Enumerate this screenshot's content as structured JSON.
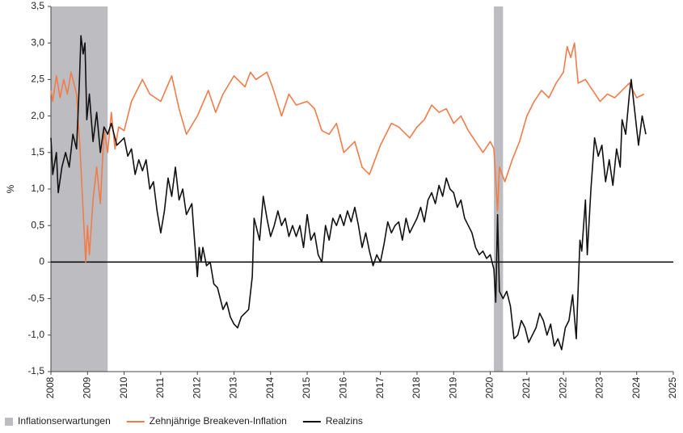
{
  "chart_data": {
    "type": "line",
    "ylabel": "%",
    "xlim": [
      2008,
      2025
    ],
    "xticks": [
      2008,
      2009,
      2010,
      2011,
      2012,
      2013,
      2014,
      2015,
      2016,
      2017,
      2018,
      2019,
      2020,
      2021,
      2022,
      2023,
      2024,
      2025
    ],
    "ylim": [
      -1.5,
      3.5
    ],
    "yticks": [
      {
        "value": -1.5,
        "label": "-1,5"
      },
      {
        "value": -1.0,
        "label": "-1,0"
      },
      {
        "value": -0.5,
        "label": "-0,5"
      },
      0,
      {
        "value": 0.5,
        "label": "0,5"
      },
      {
        "value": 1.0,
        "label": "1,0"
      },
      {
        "value": 1.5,
        "label": "1,5"
      },
      {
        "value": 2.0,
        "label": "2,0"
      },
      {
        "value": 2.5,
        "label": "2,5"
      },
      {
        "value": 3.0,
        "label": "3,0"
      },
      {
        "value": 3.5,
        "label": "3,5"
      }
    ],
    "shaded_regions": {
      "name": "Inflationserwartungen",
      "color": "#bdbdc1",
      "ranges": [
        [
          2008.0,
          2009.55
        ],
        [
          2020.1,
          2020.35
        ]
      ]
    },
    "series": [
      {
        "name": "Zehnjährige Breakeven-Inflation",
        "color": "#f07c4a",
        "x": [
          2008.0,
          2008.05,
          2008.15,
          2008.25,
          2008.35,
          2008.45,
          2008.55,
          2008.7,
          2008.8,
          2008.9,
          2008.95,
          2009.0,
          2009.05,
          2009.15,
          2009.25,
          2009.35,
          2009.45,
          2009.55,
          2009.65,
          2009.75,
          2009.85,
          2010.0,
          2010.2,
          2010.5,
          2010.7,
          2011.0,
          2011.3,
          2011.5,
          2011.7,
          2012.0,
          2012.3,
          2012.5,
          2012.7,
          2013.0,
          2013.3,
          2013.45,
          2013.6,
          2013.9,
          2014.05,
          2014.3,
          2014.5,
          2014.7,
          2015.0,
          2015.2,
          2015.4,
          2015.6,
          2015.8,
          2016.0,
          2016.3,
          2016.5,
          2016.7,
          2017.0,
          2017.3,
          2017.5,
          2017.8,
          2018.0,
          2018.2,
          2018.4,
          2018.6,
          2018.8,
          2019.0,
          2019.2,
          2019.4,
          2019.6,
          2019.8,
          2020.0,
          2020.1,
          2020.2,
          2020.25,
          2020.4,
          2020.6,
          2020.8,
          2021.0,
          2021.2,
          2021.4,
          2021.6,
          2021.8,
          2022.0,
          2022.1,
          2022.2,
          2022.3,
          2022.4,
          2022.6,
          2022.8,
          2023.0,
          2023.2,
          2023.4,
          2023.6,
          2023.8,
          2024.0,
          2024.2
        ],
        "values": [
          2.35,
          2.2,
          2.55,
          2.25,
          2.5,
          2.3,
          2.6,
          2.3,
          1.5,
          0.5,
          0.0,
          0.5,
          0.1,
          0.85,
          1.3,
          0.8,
          1.8,
          1.5,
          2.05,
          1.55,
          1.85,
          1.8,
          2.2,
          2.5,
          2.3,
          2.2,
          2.55,
          2.1,
          1.75,
          2.0,
          2.35,
          2.05,
          2.3,
          2.55,
          2.4,
          2.6,
          2.5,
          2.6,
          2.4,
          2.0,
          2.3,
          2.15,
          2.2,
          2.1,
          1.8,
          1.75,
          1.9,
          1.5,
          1.65,
          1.3,
          1.2,
          1.6,
          1.9,
          1.85,
          1.7,
          1.85,
          1.95,
          2.15,
          2.05,
          2.1,
          1.9,
          2.0,
          1.8,
          1.65,
          1.5,
          1.65,
          1.55,
          0.7,
          1.3,
          1.1,
          1.4,
          1.65,
          2.0,
          2.2,
          2.35,
          2.25,
          2.45,
          2.6,
          2.95,
          2.8,
          3.0,
          2.45,
          2.5,
          2.35,
          2.2,
          2.3,
          2.25,
          2.35,
          2.45,
          2.25,
          2.3
        ]
      },
      {
        "name": "Realzins",
        "color": "#111111",
        "x": [
          2008.0,
          2008.05,
          2008.15,
          2008.2,
          2008.3,
          2008.4,
          2008.5,
          2008.6,
          2008.7,
          2008.78,
          2008.82,
          2008.88,
          2008.93,
          2008.98,
          2009.05,
          2009.15,
          2009.25,
          2009.35,
          2009.45,
          2009.55,
          2009.65,
          2009.8,
          2010.0,
          2010.1,
          2010.2,
          2010.3,
          2010.4,
          2010.5,
          2010.6,
          2010.7,
          2010.8,
          2010.9,
          2011.0,
          2011.1,
          2011.2,
          2011.3,
          2011.4,
          2011.5,
          2011.6,
          2011.7,
          2011.85,
          2011.9,
          2012.0,
          2012.05,
          2012.1,
          2012.15,
          2012.25,
          2012.35,
          2012.45,
          2012.55,
          2012.65,
          2012.7,
          2012.8,
          2012.9,
          2013.0,
          2013.1,
          2013.2,
          2013.3,
          2013.4,
          2013.5,
          2013.55,
          2013.7,
          2013.8,
          2013.9,
          2014.0,
          2014.1,
          2014.2,
          2014.3,
          2014.4,
          2014.5,
          2014.6,
          2014.7,
          2014.8,
          2014.9,
          2015.0,
          2015.1,
          2015.2,
          2015.3,
          2015.4,
          2015.5,
          2015.6,
          2015.7,
          2015.8,
          2015.9,
          2016.0,
          2016.1,
          2016.2,
          2016.3,
          2016.4,
          2016.5,
          2016.6,
          2016.7,
          2016.8,
          2016.9,
          2017.0,
          2017.1,
          2017.2,
          2017.3,
          2017.4,
          2017.5,
          2017.6,
          2017.7,
          2017.8,
          2017.9,
          2018.0,
          2018.1,
          2018.2,
          2018.3,
          2018.4,
          2018.5,
          2018.6,
          2018.7,
          2018.8,
          2018.9,
          2019.0,
          2019.1,
          2019.2,
          2019.3,
          2019.4,
          2019.5,
          2019.6,
          2019.7,
          2019.8,
          2019.9,
          2020.0,
          2020.1,
          2020.15,
          2020.2,
          2020.25,
          2020.35,
          2020.45,
          2020.55,
          2020.65,
          2020.75,
          2020.85,
          2020.95,
          2021.05,
          2021.15,
          2021.25,
          2021.35,
          2021.45,
          2021.55,
          2021.65,
          2021.75,
          2021.85,
          2021.95,
          2022.05,
          2022.15,
          2022.25,
          2022.35,
          2022.45,
          2022.5,
          2022.6,
          2022.65,
          2022.75,
          2022.85,
          2022.95,
          2023.05,
          2023.15,
          2023.25,
          2023.35,
          2023.45,
          2023.55,
          2023.6,
          2023.7,
          2023.8,
          2023.85,
          2023.95,
          2024.05,
          2024.15,
          2024.25
        ],
        "values": [
          1.7,
          1.2,
          1.5,
          0.95,
          1.3,
          1.5,
          1.3,
          1.75,
          1.55,
          2.5,
          3.1,
          2.85,
          3.0,
          1.95,
          2.3,
          1.65,
          2.05,
          1.5,
          1.85,
          1.75,
          1.9,
          1.6,
          1.7,
          1.45,
          1.55,
          1.2,
          1.4,
          1.25,
          1.4,
          1.0,
          1.1,
          0.7,
          0.4,
          0.7,
          1.15,
          0.9,
          1.3,
          0.85,
          1.0,
          0.65,
          0.8,
          0.45,
          -0.2,
          0.2,
          0.0,
          0.2,
          -0.05,
          0.0,
          -0.3,
          -0.35,
          -0.55,
          -0.65,
          -0.55,
          -0.75,
          -0.85,
          -0.9,
          -0.75,
          -0.7,
          -0.65,
          -0.2,
          0.6,
          0.3,
          0.9,
          0.6,
          0.35,
          0.5,
          0.7,
          0.5,
          0.6,
          0.35,
          0.5,
          0.35,
          0.5,
          0.2,
          0.65,
          0.3,
          0.4,
          0.1,
          0.0,
          0.5,
          0.3,
          0.6,
          0.5,
          0.65,
          0.5,
          0.7,
          0.55,
          0.75,
          0.5,
          0.2,
          0.4,
          0.15,
          -0.05,
          0.1,
          0.0,
          0.25,
          0.55,
          0.4,
          0.5,
          0.55,
          0.3,
          0.6,
          0.4,
          0.5,
          0.6,
          0.75,
          0.55,
          0.85,
          0.95,
          0.8,
          1.05,
          0.9,
          1.15,
          1.0,
          0.95,
          0.75,
          0.85,
          0.6,
          0.5,
          0.4,
          0.2,
          0.1,
          0.15,
          0.05,
          0.1,
          -0.1,
          -0.55,
          0.65,
          -0.4,
          -0.5,
          -0.4,
          -0.6,
          -1.05,
          -1.0,
          -0.8,
          -0.9,
          -1.1,
          -1.0,
          -0.9,
          -0.7,
          -0.8,
          -1.0,
          -0.85,
          -1.15,
          -1.05,
          -1.2,
          -0.9,
          -0.8,
          -0.45,
          -1.05,
          0.3,
          0.15,
          0.85,
          0.1,
          1.0,
          1.7,
          1.45,
          1.6,
          1.1,
          1.4,
          1.05,
          1.55,
          1.3,
          1.95,
          1.75,
          2.3,
          2.5,
          2.05,
          1.6,
          2.0,
          1.75
        ]
      }
    ]
  }
}
